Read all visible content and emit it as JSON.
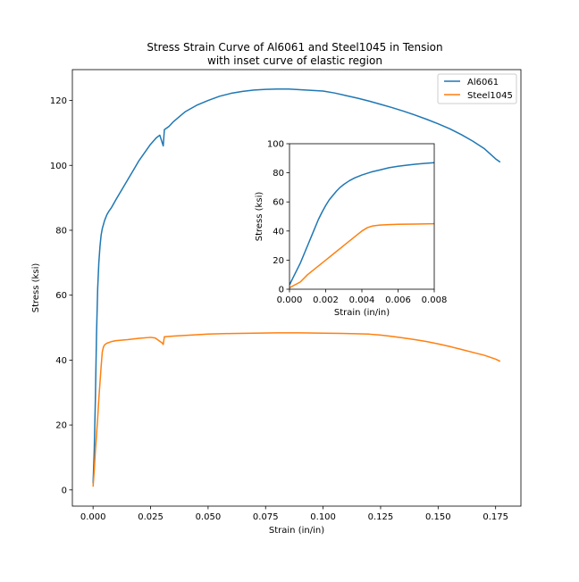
{
  "chart_data": [
    {
      "type": "line",
      "title": "Stress Strain Curve of Al6061 and Steel1045 in Tension",
      "subtitle": "with inset curve of elastic region",
      "xlabel": "Strain (in/in)",
      "ylabel": "Stress (ksi)",
      "xlim": [
        -0.009,
        0.186
      ],
      "ylim": [
        -5,
        129.5
      ],
      "xticks": [
        0.0,
        0.025,
        0.05,
        0.075,
        0.1,
        0.125,
        0.15,
        0.175
      ],
      "xtick_labels": [
        "0.000",
        "0.025",
        "0.050",
        "0.075",
        "0.100",
        "0.125",
        "0.150",
        "0.175"
      ],
      "yticks": [
        0,
        20,
        40,
        60,
        80,
        100,
        120
      ],
      "ytick_labels": [
        "0",
        "20",
        "40",
        "60",
        "80",
        "100",
        "120"
      ],
      "grid": false,
      "legend": "top-right",
      "series": [
        {
          "name": "Al6061",
          "color": "#1f77b4",
          "x": [
            0.0,
            0.0005,
            0.001,
            0.0015,
            0.002,
            0.0025,
            0.003,
            0.0035,
            0.004,
            0.005,
            0.006,
            0.007,
            0.008,
            0.01,
            0.0125,
            0.015,
            0.0175,
            0.02,
            0.0225,
            0.025,
            0.0275,
            0.029,
            0.0305,
            0.031,
            0.033,
            0.035,
            0.0375,
            0.04,
            0.045,
            0.05,
            0.055,
            0.06,
            0.065,
            0.07,
            0.075,
            0.08,
            0.085,
            0.09,
            0.095,
            0.1,
            0.105,
            0.11,
            0.115,
            0.12,
            0.125,
            0.13,
            0.135,
            0.14,
            0.145,
            0.15,
            0.155,
            0.16,
            0.165,
            0.17,
            0.175,
            0.177
          ],
          "y": [
            2,
            12,
            28,
            48,
            62,
            70,
            75,
            78.5,
            80.5,
            83,
            84.8,
            86,
            87,
            89.5,
            92.5,
            95.5,
            98.5,
            101.5,
            104,
            106.5,
            108.5,
            109.3,
            106,
            111,
            112,
            113.5,
            115,
            116.5,
            118.5,
            120,
            121.3,
            122.2,
            122.8,
            123.2,
            123.4,
            123.5,
            123.5,
            123.3,
            123.1,
            122.9,
            122.3,
            121.5,
            120.7,
            119.8,
            118.8,
            117.8,
            116.7,
            115.5,
            114.2,
            112.8,
            111.3,
            109.5,
            107.5,
            105.2,
            102,
            101
          ]
        },
        {
          "name": "Steel1045",
          "color": "#ff7f0e",
          "x": [
            0.0,
            0.0005,
            0.001,
            0.0015,
            0.002,
            0.0025,
            0.003,
            0.0035,
            0.004,
            0.0045,
            0.005,
            0.006,
            0.008,
            0.01,
            0.015,
            0.02,
            0.025,
            0.027,
            0.03,
            0.0305,
            0.031,
            0.035,
            0.04,
            0.05,
            0.06,
            0.07,
            0.08,
            0.085,
            0.09,
            0.1,
            0.11,
            0.12,
            0.125,
            0.13,
            0.135,
            0.14,
            0.145,
            0.15,
            0.155,
            0.16,
            0.165,
            0.17,
            0.175,
            0.177
          ],
          "y": [
            1,
            6,
            12,
            17,
            22,
            28,
            33,
            38,
            42.5,
            44,
            44.7,
            45.2,
            45.7,
            46,
            46.3,
            46.7,
            47,
            46.8,
            45.3,
            44.8,
            47.2,
            47.4,
            47.6,
            48,
            48.2,
            48.3,
            48.4,
            48.4,
            48.4,
            48.3,
            48.2,
            48,
            47.7,
            47.3,
            46.8,
            46.3,
            45.7,
            45,
            44.2,
            43.3,
            42.4,
            41.5,
            40.3,
            39.6
          ]
        }
      ]
    },
    {
      "type": "line",
      "title": "",
      "xlabel": "Strain (in/in)",
      "ylabel": "Stress (ksi)",
      "xlim": [
        0.0,
        0.008
      ],
      "ylim": [
        0,
        100
      ],
      "xticks": [
        0.0,
        0.002,
        0.004,
        0.006,
        0.008
      ],
      "xtick_labels": [
        "0.000",
        "0.002",
        "0.004",
        "0.006",
        "0.008"
      ],
      "yticks": [
        0,
        20,
        40,
        60,
        80,
        100
      ],
      "ytick_labels": [
        "0",
        "20",
        "40",
        "60",
        "80",
        "100"
      ],
      "grid": false,
      "series": [
        {
          "color": "#1f77b4",
          "x": [
            0.0,
            0.0002,
            0.0004,
            0.0006,
            0.0008,
            0.001,
            0.0012,
            0.0014,
            0.0016,
            0.0018,
            0.002,
            0.0022,
            0.0024,
            0.0026,
            0.0028,
            0.003,
            0.0033,
            0.0036,
            0.004,
            0.0045,
            0.005,
            0.0055,
            0.006,
            0.0065,
            0.007,
            0.0075,
            0.008
          ],
          "y": [
            3,
            8,
            13,
            18,
            24,
            30,
            36,
            42,
            48,
            53,
            57.5,
            61.5,
            64.5,
            67.5,
            70,
            72,
            74.5,
            76.5,
            78.5,
            80.5,
            82,
            83.5,
            84.5,
            85.3,
            86,
            86.5,
            87
          ]
        },
        {
          "color": "#ff7f0e",
          "x": [
            0.0,
            0.0003,
            0.0006,
            0.001,
            0.0015,
            0.002,
            0.0025,
            0.003,
            0.0035,
            0.004,
            0.0043,
            0.0046,
            0.005,
            0.0055,
            0.006,
            0.007,
            0.008
          ],
          "y": [
            1,
            3,
            5,
            10,
            15,
            20,
            25,
            30,
            35,
            40,
            42.3,
            43.5,
            44.1,
            44.4,
            44.6,
            44.8,
            45
          ]
        }
      ]
    }
  ]
}
